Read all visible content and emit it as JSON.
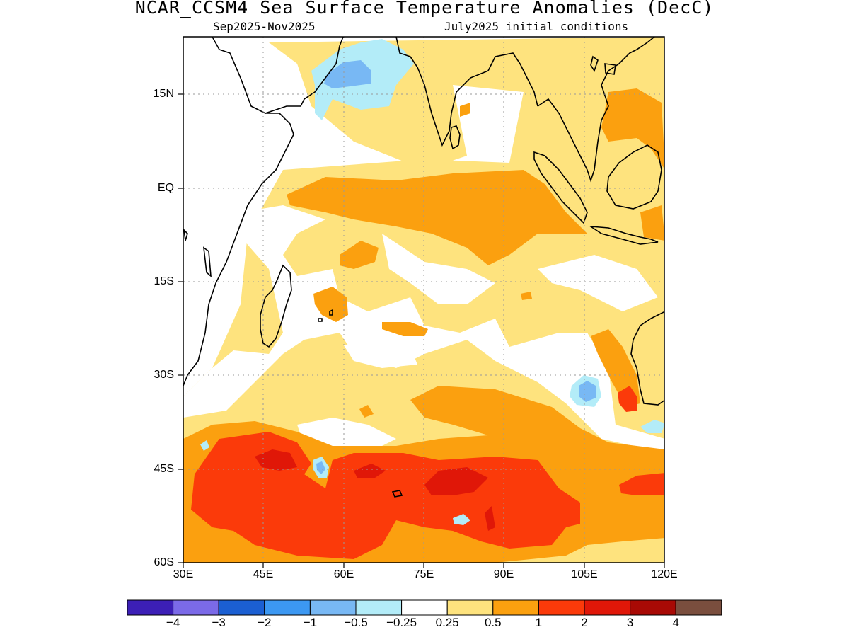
{
  "title": "NCAR_CCSM4 Sea Surface Temperature Anomalies (DecC)",
  "subtitle_left": "Sep2025-Nov2025",
  "subtitle_right": "July2025 initial conditions",
  "map": {
    "lat_labels": [
      "15N",
      "EQ",
      "15S",
      "30S",
      "45S",
      "60S"
    ],
    "lon_labels": [
      "30E",
      "45E",
      "60E",
      "75E",
      "90E",
      "105E",
      "120E"
    ],
    "extent": {
      "lon": [
        30,
        120
      ],
      "lat": [
        -60,
        24
      ]
    },
    "grid": "dotted"
  },
  "colorbar": {
    "labels": [
      "−4",
      "−3",
      "−2",
      "−1",
      "−0.5",
      "−0.25",
      "0.25",
      "0.5",
      "1",
      "2",
      "3",
      "4"
    ],
    "colors": [
      "#3c1fb6",
      "#7b6ae8",
      "#1b5fd2",
      "#3c98f2",
      "#78b8f4",
      "#b3ecf8",
      "#ffffff",
      "#fee37e",
      "#fba00f",
      "#fb3a0a",
      "#e01708",
      "#a80a05",
      "#7a4e3e"
    ]
  },
  "colors": {
    "land": "#ffffff",
    "coast": "#000000",
    "grid": "#9a9a9a"
  }
}
